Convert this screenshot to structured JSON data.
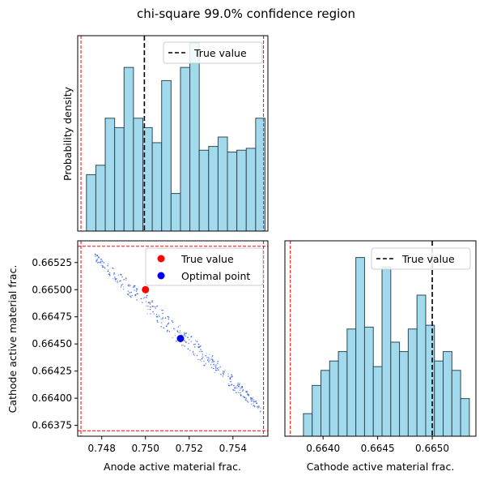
{
  "title": "chi-square 99.0% confidence region",
  "colors": {
    "hist_fill": "#a3d9ec",
    "hist_edge": "#2b4a55",
    "true_point": "#ff0000",
    "optimal_point": "#0000ff",
    "scatter": "#1f4fd8",
    "bound": "#ff0000",
    "true_line": "#000000"
  },
  "chart_data": [
    {
      "id": "anode-hist",
      "type": "bar",
      "ylabel": "Probability density",
      "xlim": [
        0.7469,
        0.7556
      ],
      "bin_edges": [
        0.7473,
        0.74773,
        0.74816,
        0.74859,
        0.74902,
        0.74945,
        0.74988,
        0.75031,
        0.75074,
        0.75117,
        0.7516,
        0.75203,
        0.75246,
        0.75289,
        0.75332,
        0.75375,
        0.75418,
        0.75461,
        0.75504,
        0.75547
      ],
      "values": [
        0.3,
        0.35,
        0.6,
        0.55,
        0.87,
        0.6,
        0.55,
        0.47,
        0.8,
        0.2,
        0.87,
        1.0,
        0.43,
        0.45,
        0.5,
        0.42,
        0.43,
        0.44,
        0.6
      ],
      "true_value": 0.74995,
      "bounds": [
        0.74705,
        0.7554
      ],
      "legend": [
        "True value"
      ],
      "legend_position": "top-right"
    },
    {
      "id": "scatter-panel",
      "type": "scatter",
      "xlabel": "Anode active material frac.",
      "ylabel": "Cathode active material frac.",
      "xlim": [
        0.7469,
        0.7556
      ],
      "ylim": [
        0.66365,
        0.66545
      ],
      "xticks": [
        "0.748",
        "0.750",
        "0.752",
        "0.754"
      ],
      "yticks": [
        "0.66375",
        "0.66400",
        "0.66425",
        "0.66450",
        "0.66475",
        "0.66500",
        "0.66525"
      ],
      "true_value": {
        "x": 0.75,
        "y": 0.665
      },
      "optimal_point": {
        "x": 0.7516,
        "y": 0.66455
      },
      "bounds_x": [
        0.74705,
        0.7554
      ],
      "bounds_y": [
        0.6637,
        0.6654
      ],
      "cloud": {
        "x_start": 0.7477,
        "x_end": 0.7553,
        "y_start": 0.6653,
        "y_end": 0.6639,
        "width": 9e-05,
        "count": 360
      },
      "legend": [
        "True value",
        "Optimal point"
      ],
      "legend_position": "top-right"
    },
    {
      "id": "cathode-hist",
      "type": "bar",
      "xlabel": "Cathode active material frac.",
      "xlim": [
        0.66365,
        0.6654
      ],
      "xticks": [
        "0.6640",
        "0.6645",
        "0.6650"
      ],
      "bin_edges": [
        0.66382,
        0.6639,
        0.66398,
        0.66406,
        0.66414,
        0.66422,
        0.6643,
        0.66438,
        0.66446,
        0.66454,
        0.66462,
        0.6647,
        0.66478,
        0.66486,
        0.66494,
        0.66502,
        0.6651,
        0.66518,
        0.66526,
        0.66534
      ],
      "values": [
        0.12,
        0.27,
        0.35,
        0.4,
        0.45,
        0.57,
        0.95,
        0.58,
        0.37,
        0.9,
        0.5,
        0.45,
        0.57,
        0.75,
        0.59,
        0.4,
        0.45,
        0.35,
        0.2
      ],
      "true_value": 0.665,
      "bounds": [
        0.6637,
        0.6654
      ],
      "legend": [
        "True value"
      ],
      "legend_position": "top-right"
    }
  ]
}
